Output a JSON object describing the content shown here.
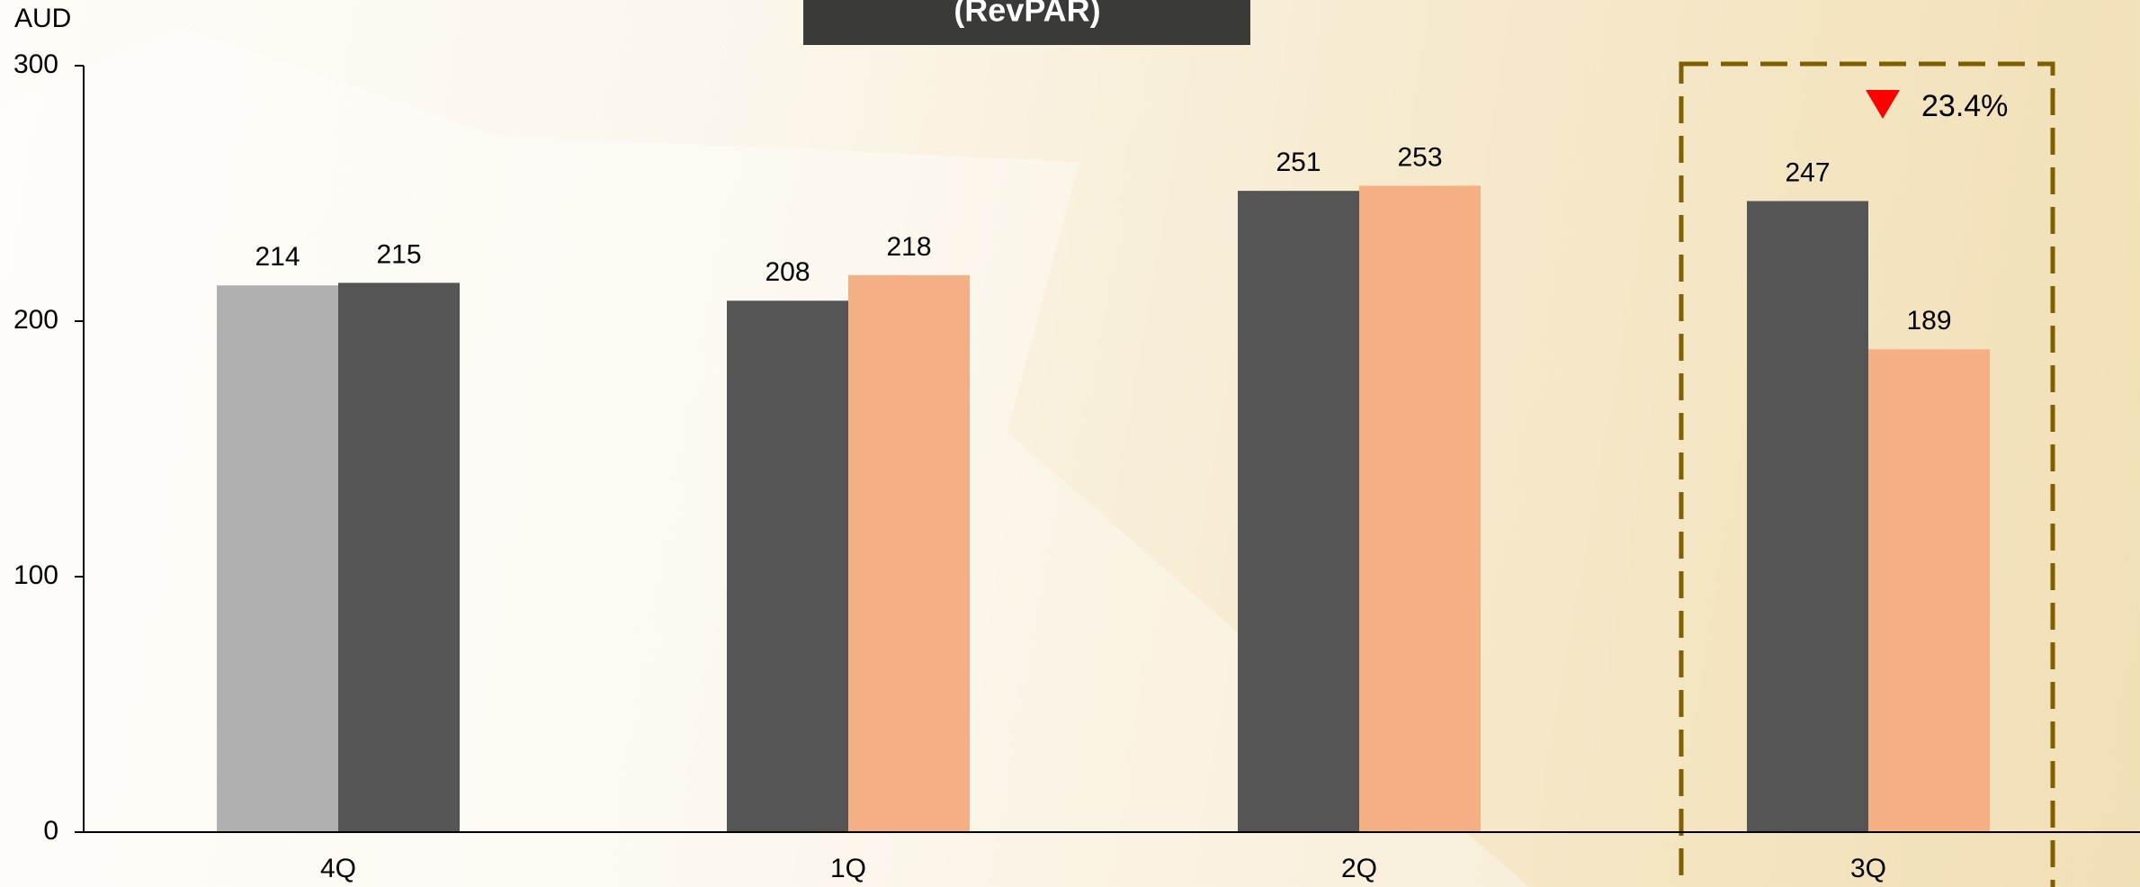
{
  "chart_data": {
    "type": "bar",
    "title": "(RevPAR)",
    "y_label": "AUD",
    "categories": [
      "4Q",
      "1Q",
      "2Q",
      "3Q"
    ],
    "series": [
      {
        "colors": [
          "#b0b0b0",
          "#555555",
          "#555555",
          "#555555"
        ],
        "values": [
          214,
          208,
          251,
          247
        ]
      },
      {
        "colors": [
          "#555555",
          "#f4b084",
          "#f4b084",
          "#f4b084"
        ],
        "values": [
          215,
          218,
          253,
          189
        ]
      }
    ],
    "ylim": [
      0,
      300
    ],
    "yticks": [
      0,
      100,
      200,
      300
    ],
    "annotation": "23.4%",
    "annotation_color": "#ff0000",
    "highlight_color": "#7f6000"
  }
}
